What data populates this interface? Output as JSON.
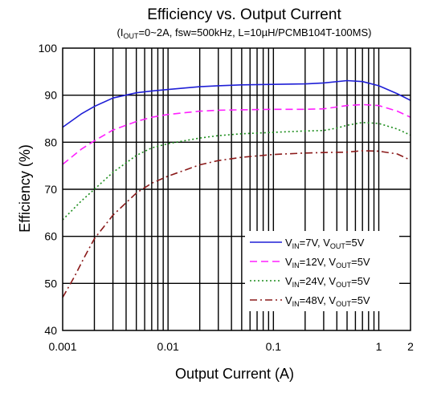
{
  "chart_data": {
    "type": "line",
    "title": "Efficiency vs. Output Current",
    "subtitle": {
      "prefix": "(I",
      "prefix_sub": "OUT",
      "text": "=0~2A,  fsw=500kHz,  L=10µH/PCMB104T-100MS)"
    },
    "xlabel": "Output Current (A)",
    "ylabel": "Efficiency (%)",
    "x_scale": "log",
    "xlim": [
      0.001,
      2
    ],
    "ylim": [
      40,
      100
    ],
    "x_tick_labels": [
      {
        "value": 0.001,
        "label": "0.001"
      },
      {
        "value": 0.01,
        "label": "0.01"
      },
      {
        "value": 0.1,
        "label": "0.1"
      },
      {
        "value": 1,
        "label": "1"
      },
      {
        "value": 2,
        "label": "2"
      }
    ],
    "y_ticks": [
      40,
      50,
      60,
      70,
      80,
      90,
      100
    ],
    "grid": true,
    "legend_position": "bottom-right",
    "series": [
      {
        "name": "VIN=7V, VOUT=5V",
        "legend": {
          "v1": "V",
          "s1": "IN",
          "t1": "=7V, V",
          "s2": "OUT",
          "t2": "=5V"
        },
        "color": "#1f1fd6",
        "dash": "solid",
        "x": [
          0.001,
          0.0015,
          0.002,
          0.003,
          0.005,
          0.007,
          0.01,
          0.02,
          0.03,
          0.05,
          0.1,
          0.2,
          0.3,
          0.5,
          0.7,
          1,
          1.5,
          2
        ],
        "y": [
          83.2,
          86.0,
          87.6,
          89.4,
          90.5,
          90.9,
          91.2,
          91.8,
          92.0,
          92.2,
          92.3,
          92.4,
          92.6,
          93.1,
          92.9,
          92.0,
          90.3,
          88.9
        ]
      },
      {
        "name": "VIN=12V, VOUT=5V",
        "legend": {
          "v1": "V",
          "s1": "IN",
          "t1": "=12V, V",
          "s2": "OUT",
          "t2": "=5V"
        },
        "color": "#ff1fff",
        "dash": "dashed",
        "x": [
          0.001,
          0.0015,
          0.002,
          0.003,
          0.005,
          0.007,
          0.01,
          0.02,
          0.03,
          0.05,
          0.1,
          0.2,
          0.3,
          0.5,
          0.7,
          1,
          1.5,
          2
        ],
        "y": [
          75.3,
          78.5,
          80.3,
          82.6,
          84.4,
          85.3,
          85.9,
          86.6,
          86.8,
          86.9,
          87.0,
          87.0,
          87.1,
          87.8,
          88.0,
          87.8,
          86.6,
          85.3
        ]
      },
      {
        "name": "VIN=24V, VOUT=5V",
        "legend": {
          "v1": "V",
          "s1": "IN",
          "t1": "=24V, V",
          "s2": "OUT",
          "t2": "=5V"
        },
        "color": "#1a8c1a",
        "dash": "dotted",
        "x": [
          0.001,
          0.0015,
          0.002,
          0.003,
          0.005,
          0.007,
          0.01,
          0.02,
          0.03,
          0.05,
          0.1,
          0.2,
          0.3,
          0.4,
          0.5,
          0.7,
          1,
          1.5,
          2
        ],
        "y": [
          63.5,
          67.5,
          70.0,
          73.6,
          77.2,
          78.8,
          79.7,
          80.9,
          81.4,
          81.8,
          82.1,
          82.4,
          82.5,
          83.0,
          83.6,
          84.2,
          84.0,
          82.8,
          81.5
        ]
      },
      {
        "name": "VIN=48V, VOUT=5V",
        "legend": {
          "v1": "V",
          "s1": "IN",
          "t1": "=48V, V",
          "s2": "OUT",
          "t2": "=5V"
        },
        "color": "#8b1a1a",
        "dash": "dashdot",
        "x": [
          0.001,
          0.0013,
          0.0016,
          0.002,
          0.003,
          0.005,
          0.007,
          0.01,
          0.02,
          0.03,
          0.05,
          0.1,
          0.2,
          0.3,
          0.5,
          0.7,
          1,
          1.5,
          2
        ],
        "y": [
          47.0,
          51.5,
          55.5,
          59.5,
          64.5,
          69.2,
          71.3,
          72.8,
          75.2,
          76.1,
          76.8,
          77.4,
          77.7,
          77.8,
          77.9,
          78.2,
          78.1,
          77.5,
          76.2
        ]
      }
    ]
  }
}
